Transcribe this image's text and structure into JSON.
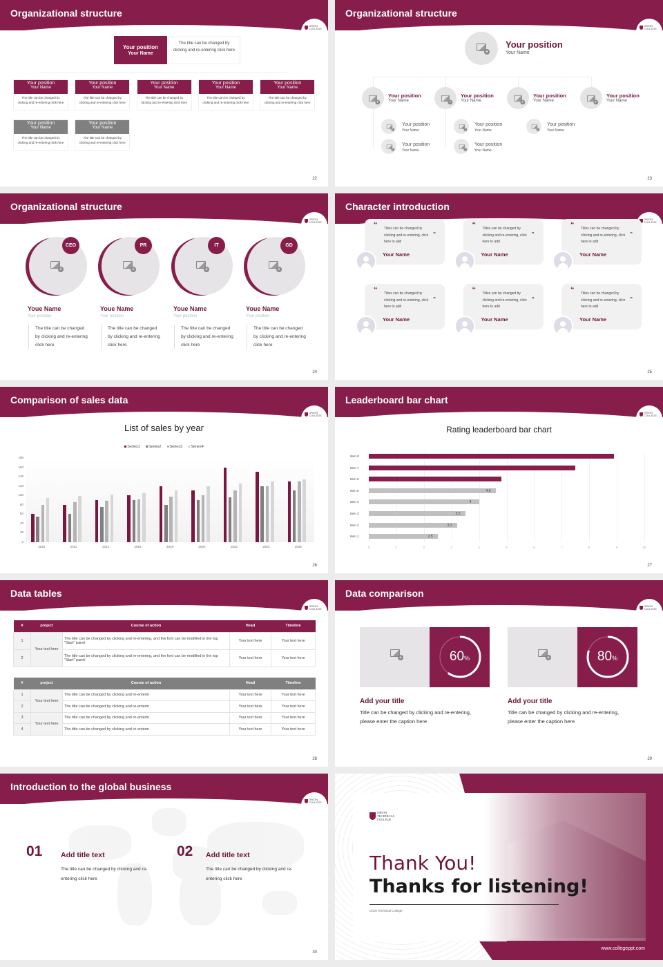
{
  "colors": {
    "accent": "#861d4a",
    "grey": "#808080",
    "light": "#e8e6e8",
    "bar_grey": "#c0c0c0"
  },
  "logo_text": "ORION COLLEGE",
  "s22": {
    "title": "Organizational structure",
    "page": "22",
    "top": {
      "position": "Your position",
      "name": "Your Name",
      "desc": "The title can be changed by clicking and re-entering click here"
    },
    "row1": [
      {
        "position": "Your position",
        "name": "Your Name",
        "desc": "The title can be changed by clicking and re-entering click here"
      },
      {
        "position": "Your position",
        "name": "Your Name",
        "desc": "The title can be changed by clicking and re-entering click here"
      },
      {
        "position": "Your position",
        "name": "Your Name",
        "desc": "The title can be changed by clicking and re-entering click here"
      },
      {
        "position": "Your position",
        "name": "Your Name",
        "desc": "The title can be changed by clicking and re-entering click here"
      },
      {
        "position": "Your position",
        "name": "Your Name",
        "desc": "The title can be changed by clicking and re-entering click here"
      }
    ],
    "row2": [
      {
        "position": "Your position",
        "name": "Your Name",
        "desc": "The title can be changed by clicking and re-entering click here"
      },
      {
        "position": "Your position",
        "name": "Your Name",
        "desc": "The title can be changed by clicking and re-entering click here"
      }
    ]
  },
  "s23": {
    "title": "Organizational structure",
    "page": "23",
    "top": {
      "position": "Your position",
      "name": "Your Name"
    },
    "level2": [
      {
        "position": "Your position",
        "name": "Your Name"
      },
      {
        "position": "Your position",
        "name": "Your Name"
      },
      {
        "position": "Your position",
        "name": "Your Name"
      },
      {
        "position": "Your position",
        "name": "Your Name"
      }
    ],
    "level3": [
      {
        "position": "Your position",
        "name": "Your Name"
      },
      {
        "position": "Your position",
        "name": "Your Name"
      },
      {
        "position": "Your position",
        "name": "Your Name"
      },
      {
        "position": "Your position",
        "name": "Your Name"
      },
      {
        "position": "Your position",
        "name": "Your Name"
      }
    ]
  },
  "s24": {
    "title": "Organizational structure",
    "page": "24",
    "people": [
      {
        "badge": "CEO",
        "name": "Youe Name",
        "position": "Your position",
        "desc": "The title can be changed by clicking and re-entering click here"
      },
      {
        "badge": "PR",
        "name": "Youe Name",
        "position": "Your position",
        "desc": "The title can be changed by clicking and re-entering click here"
      },
      {
        "badge": "IT",
        "name": "Youe Name",
        "position": "Your position",
        "desc": "The title can be changed by clicking and re-entering click here"
      },
      {
        "badge": "GD",
        "name": "Youe Name",
        "position": "Your position",
        "desc": "The title can be changed by clicking and re-entering click here"
      }
    ]
  },
  "s25": {
    "title": "Character introduction",
    "page": "25",
    "cards": [
      {
        "quote": "Titles can be changed by clicking and re-entering, click here to add",
        "name": "Your Name"
      },
      {
        "quote": "Titles can be changed by clicking and re-entering, click here to add",
        "name": "Your Name"
      },
      {
        "quote": "Titles can be changed by clicking and re-entering, click here to add",
        "name": "Your Name"
      },
      {
        "quote": "Titles can be changed by clicking and re-entering, click here to add",
        "name": "Your Name"
      },
      {
        "quote": "Titles can be changed by clicking and re-entering, click here to add",
        "name": "Your Name"
      },
      {
        "quote": "Titles can be changed by clicking and re-entering, click here to add",
        "name": "Your Name"
      }
    ]
  },
  "s26": {
    "title": "Comparison of sales data",
    "page": "26"
  },
  "s27": {
    "title": "Leaderboard bar chart",
    "page": "27"
  },
  "chart_data": [
    {
      "type": "bar",
      "title": "List of sales by year",
      "xlabel": "",
      "ylabel": "",
      "categories": [
        "2010",
        "2012",
        "2014",
        "2016",
        "2018",
        "2020",
        "2022",
        "2024",
        "2026"
      ],
      "ylim": [
        0,
        180
      ],
      "yticks": [
        0,
        20,
        40,
        60,
        80,
        100,
        120,
        140,
        160,
        180
      ],
      "grid": false,
      "legend": "top",
      "series": [
        {
          "name": "Series1",
          "color": "#7a1640",
          "values": [
            60,
            80,
            90,
            100,
            120,
            110,
            160,
            150,
            130
          ]
        },
        {
          "name": "Series2",
          "color": "#7f7f7f",
          "values": [
            55,
            60,
            75,
            90,
            80,
            90,
            96,
            120,
            110
          ]
        },
        {
          "name": "Series3",
          "color": "#b4b4b4",
          "values": [
            80,
            86,
            88,
            92,
            98,
            100,
            110,
            120,
            130
          ]
        },
        {
          "name": "Series4",
          "color": "#d6d6d6",
          "values": [
            95,
            99,
            102,
            105,
            110,
            120,
            126,
            130,
            135
          ]
        }
      ]
    },
    {
      "type": "bar",
      "orientation": "horizontal",
      "title": "Rating leaderboard bar chart",
      "xlabel": "",
      "ylabel": "",
      "categories": [
        "Item 8",
        "Item 7",
        "Item 6",
        "Item 5",
        "Item 4",
        "Item 3",
        "Item 2",
        "Item 1"
      ],
      "values": [
        8.9,
        7.5,
        4.8,
        4.6,
        4,
        3.5,
        3.2,
        2.5
      ],
      "data_labels": [
        "",
        "",
        "",
        "4.6",
        "4",
        "3.5",
        "3.2",
        "2.5"
      ],
      "highlight_colors": [
        "#861d4a",
        "#861d4a",
        "#861d4a",
        "#c0c0c0",
        "#c0c0c0",
        "#c0c0c0",
        "#c0c0c0",
        "#c0c0c0"
      ],
      "xlim": [
        0,
        10
      ],
      "xticks": [
        0,
        1,
        2,
        3,
        4,
        5,
        6,
        7,
        8,
        9,
        10
      ],
      "grid": true
    }
  ],
  "s28": {
    "title": "Data tables",
    "page": "28",
    "headers": [
      "#",
      "project",
      "Course of action",
      "Head",
      "Timeline"
    ],
    "table1": {
      "project": "Your text here",
      "rows": [
        {
          "n": "1",
          "action": "The title can be changed by clicking and re-entering, and the font can be modified in the top \"Start\" panel",
          "head": "Your text here",
          "timeline": "Your text here"
        },
        {
          "n": "2",
          "action": "The title can be changed by clicking and re-entering, and the font can be modified in the top \"Start\" panel",
          "head": "Your text here",
          "timeline": "Your text here"
        }
      ]
    },
    "table2": {
      "project_a": "Your text here",
      "project_b": "Your text here",
      "rows": [
        {
          "n": "1",
          "action": "The title can be changed by clicking and re-enterin",
          "head": "Your text here",
          "timeline": "Your text here"
        },
        {
          "n": "2",
          "action": "The title can be changed by clicking and re-enterin",
          "head": "Your text here",
          "timeline": "Your text here"
        },
        {
          "n": "3",
          "action": "The title can be changed by clicking and re-enterin",
          "head": "Your text here",
          "timeline": "Your text here"
        },
        {
          "n": "4",
          "action": "The title can be changed by clicking and re-enterin",
          "head": "Your text here",
          "timeline": "Your text here"
        }
      ]
    }
  },
  "s29": {
    "title": "Data comparison",
    "page": "29",
    "items": [
      {
        "percent": 60,
        "value": "60",
        "unit": "%",
        "title": "Add your title",
        "desc": "Title can be changed by clicking and re-entering, please enter the caption here"
      },
      {
        "percent": 80,
        "value": "80",
        "unit": "%",
        "title": "Add your title",
        "desc": "Title can be changed by clicking and re-entering, please enter the caption here"
      }
    ]
  },
  "s30": {
    "title": "Introduction to the global business",
    "page": "30",
    "items": [
      {
        "num": "01",
        "title": "Add title text",
        "desc": "The title can be changed by clicking and re-entering click here"
      },
      {
        "num": "02",
        "title": "Add title text",
        "desc": "The title can be changed by clicking and re-entering click here"
      }
    ]
  },
  "s31": {
    "logo": "ORION TECHNICAL COLLEGE",
    "thank": "Thank You!",
    "thanks": "Thanks for listening!",
    "org": "Orion Technical College",
    "url": "www.collegeppt.com"
  }
}
